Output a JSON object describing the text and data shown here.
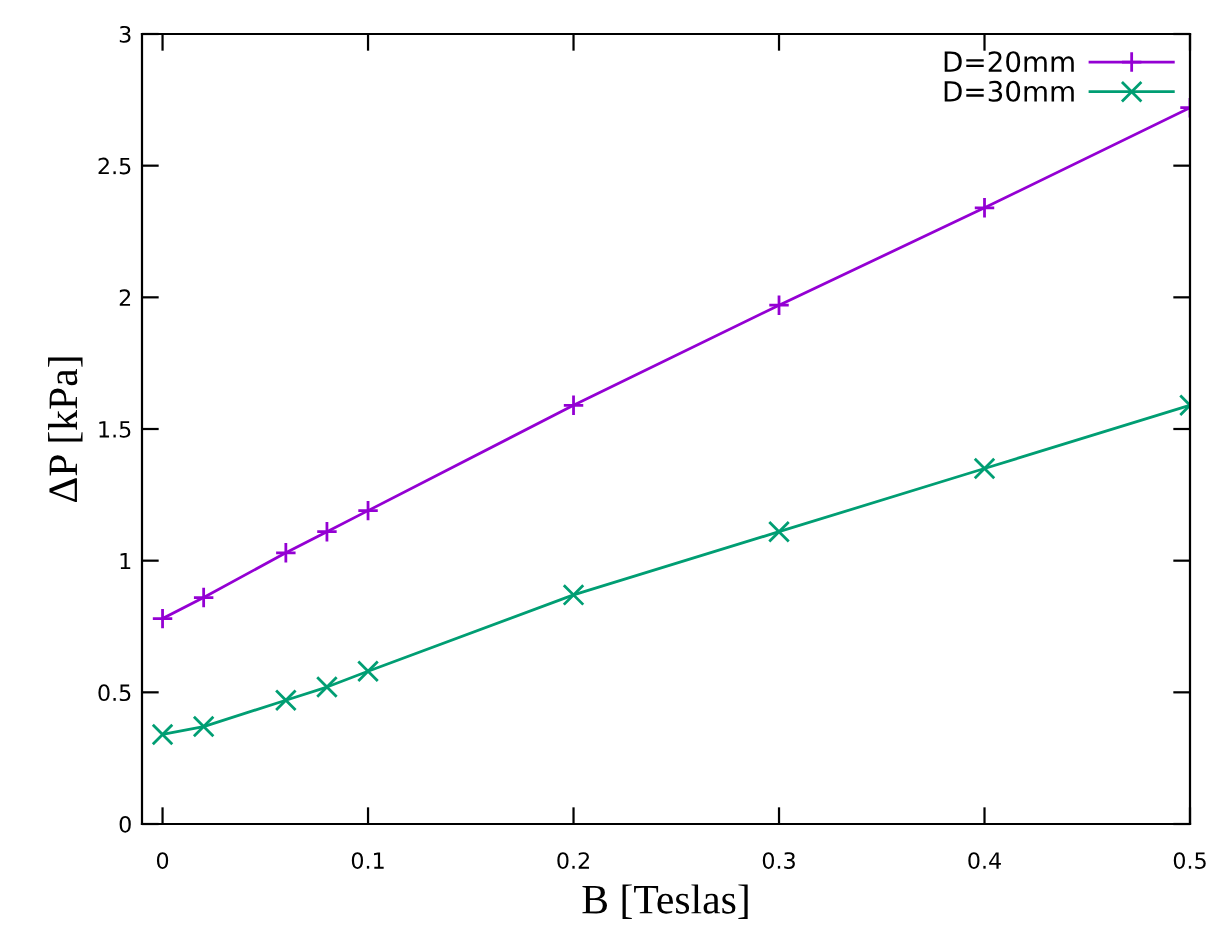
{
  "chart_data": {
    "type": "line",
    "xlabel": "B [Teslas]",
    "ylabel": "ΔP [kPa]",
    "x": [
      0,
      0.02,
      0.06,
      0.08,
      0.1,
      0.2,
      0.3,
      0.4,
      0.5
    ],
    "series": [
      {
        "name": "D=20mm",
        "color": "#9400d3",
        "marker": "plus",
        "values": [
          0.78,
          0.86,
          1.03,
          1.11,
          1.19,
          1.59,
          1.97,
          2.34,
          2.72
        ]
      },
      {
        "name": "D=30mm",
        "color": "#009e73",
        "marker": "cross",
        "values": [
          0.34,
          0.37,
          0.47,
          0.52,
          0.58,
          0.87,
          1.11,
          1.35,
          1.59
        ]
      }
    ],
    "xlim": [
      -0.01,
      0.5
    ],
    "ylim": [
      0,
      3
    ],
    "xticks": [
      0,
      0.1,
      0.2,
      0.3,
      0.4,
      0.5
    ],
    "yticks": [
      0,
      0.5,
      1,
      1.5,
      2,
      2.5,
      3
    ],
    "grid": false,
    "legend": "top right",
    "line_style": "solid"
  }
}
